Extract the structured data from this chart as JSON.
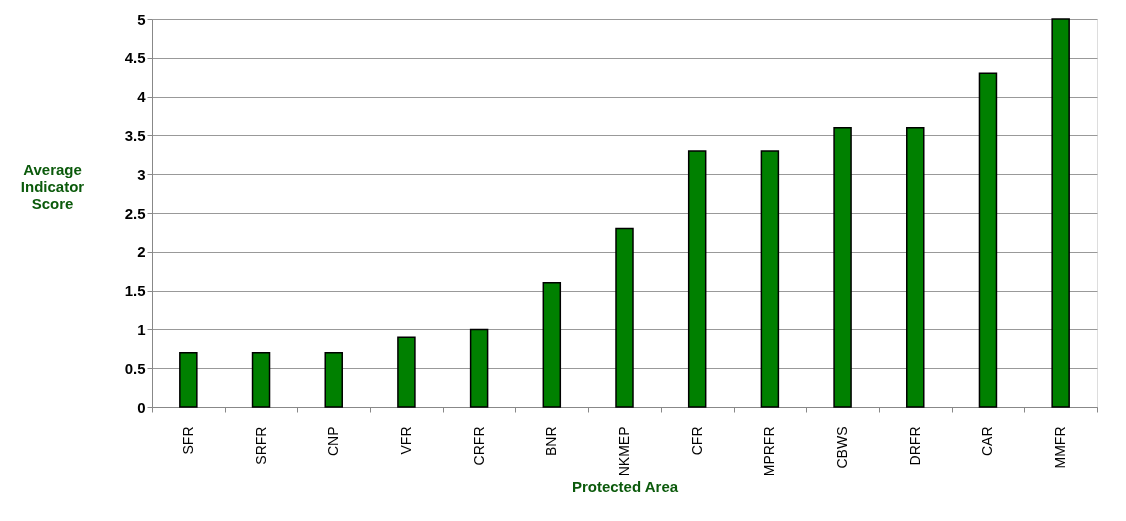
{
  "chart_data": {
    "type": "bar",
    "xlabel": "Protected Area",
    "ylabel": "Average Indicator Score",
    "categories": [
      "SFR",
      "SRFR",
      "CNP",
      "VFR",
      "CRFR",
      "BNR",
      "NKMEP",
      "CFR",
      "MPRFR",
      "CBWS",
      "DRFR",
      "CAR",
      "MMFR"
    ],
    "values": [
      0.7,
      0.7,
      0.7,
      0.9,
      1.0,
      1.6,
      2.3,
      3.3,
      3.3,
      3.6,
      3.6,
      4.3,
      5
    ],
    "color": "#008000",
    "ylim": [
      0,
      5
    ],
    "yticks": [
      0,
      0.5,
      1,
      1.5,
      2,
      2.5,
      3,
      3.5,
      4,
      4.5,
      5
    ],
    "grid": "y"
  }
}
